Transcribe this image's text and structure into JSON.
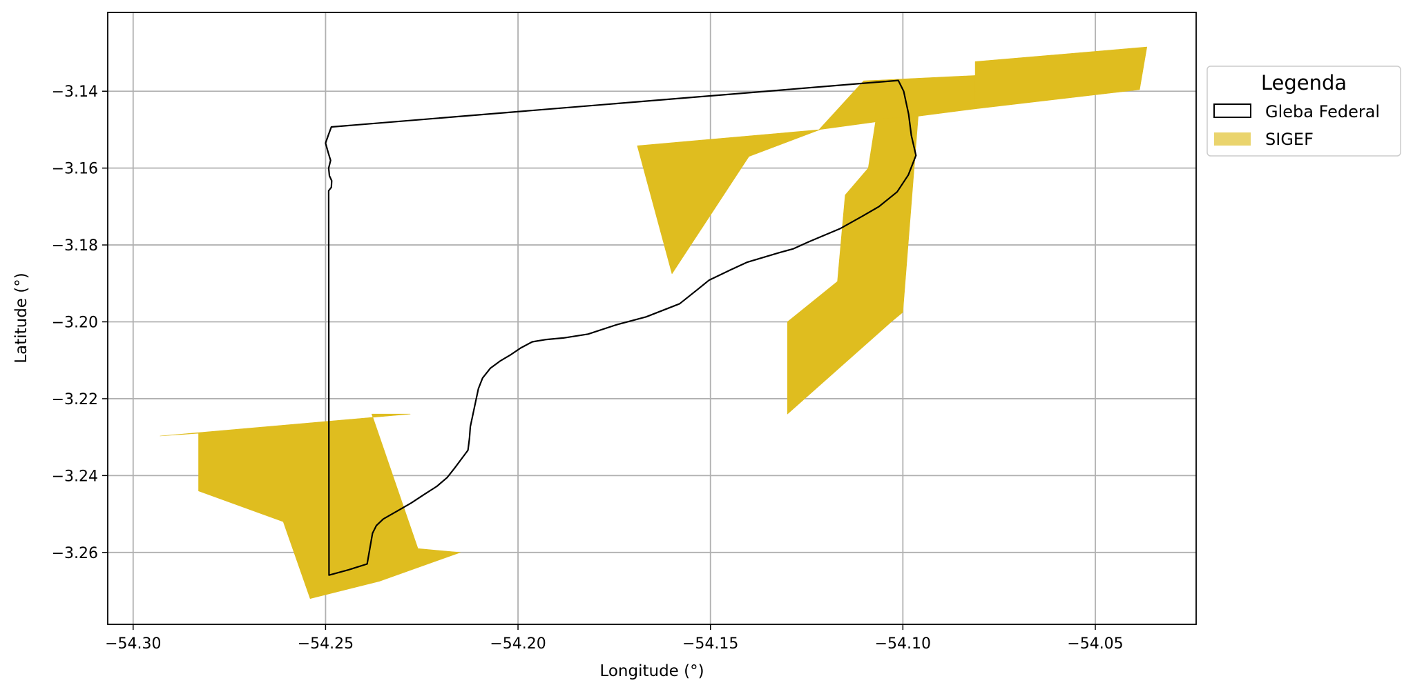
{
  "chart_data": {
    "type": "map",
    "xlabel": "Longitude (°)",
    "ylabel": "Latitude (°)",
    "xlim": [
      -54.3066,
      -54.0238
    ],
    "ylim": [
      -3.2787,
      -3.1195
    ],
    "grid": true,
    "x_ticks": [
      -54.3,
      -54.25,
      -54.2,
      -54.15,
      -54.1,
      -54.05
    ],
    "x_tick_labels": [
      "−54.30",
      "−54.25",
      "−54.20",
      "−54.15",
      "−54.10",
      "−54.05"
    ],
    "y_ticks": [
      -3.14,
      -3.16,
      -3.18,
      -3.2,
      -3.22,
      -3.24,
      -3.26
    ],
    "y_tick_labels": [
      "−3.14",
      "−3.16",
      "−3.18",
      "−3.20",
      "−3.22",
      "−3.24",
      "−3.26"
    ],
    "legend": {
      "title": "Legenda",
      "position": "outside-right-top",
      "entries": [
        {
          "label": "Gleba Federal",
          "style": "outline",
          "edge_color": "#000000"
        },
        {
          "label": "SIGEF",
          "style": "fill",
          "color": "#dfbd1f"
        }
      ]
    },
    "series": [
      {
        "name": "Gleba Federal",
        "type": "polygon-outline",
        "color": "#000000",
        "coords": [
          [
            -54.2485,
            -3.1493
          ],
          [
            -54.1012,
            -3.1372
          ],
          [
            -54.0998,
            -3.14
          ],
          [
            -54.0985,
            -3.146
          ],
          [
            -54.0978,
            -3.1515
          ],
          [
            -54.0966,
            -3.1567
          ],
          [
            -54.0986,
            -3.1618
          ],
          [
            -54.1015,
            -3.1662
          ],
          [
            -54.1062,
            -3.17
          ],
          [
            -54.1105,
            -3.1725
          ],
          [
            -54.1162,
            -3.1757
          ],
          [
            -54.1245,
            -3.1792
          ],
          [
            -54.1285,
            -3.181
          ],
          [
            -54.1321,
            -3.182
          ],
          [
            -54.1405,
            -3.1845
          ],
          [
            -54.1448,
            -3.1865
          ],
          [
            -54.1504,
            -3.1892
          ],
          [
            -54.1535,
            -3.1917
          ],
          [
            -54.158,
            -3.1953
          ],
          [
            -54.1667,
            -3.1987
          ],
          [
            -54.1742,
            -3.2007
          ],
          [
            -54.1818,
            -3.2032
          ],
          [
            -54.1882,
            -3.2042
          ],
          [
            -54.1926,
            -3.2046
          ],
          [
            -54.1963,
            -3.2052
          ],
          [
            -54.1993,
            -3.2068
          ],
          [
            -54.2018,
            -3.2085
          ],
          [
            -54.2045,
            -3.2101
          ],
          [
            -54.2072,
            -3.2121
          ],
          [
            -54.2092,
            -3.2146
          ],
          [
            -54.2103,
            -3.2174
          ],
          [
            -54.211,
            -3.2207
          ],
          [
            -54.2117,
            -3.224
          ],
          [
            -54.2124,
            -3.2273
          ],
          [
            -54.2126,
            -3.2303
          ],
          [
            -54.213,
            -3.2334
          ],
          [
            -54.2147,
            -3.2357
          ],
          [
            -54.2165,
            -3.2381
          ],
          [
            -54.2184,
            -3.2405
          ],
          [
            -54.2211,
            -3.2428
          ],
          [
            -54.2245,
            -3.245
          ],
          [
            -54.2277,
            -3.2471
          ],
          [
            -54.2315,
            -3.2493
          ],
          [
            -54.235,
            -3.2513
          ],
          [
            -54.2368,
            -3.253
          ],
          [
            -54.2378,
            -3.255
          ],
          [
            -54.2392,
            -3.263
          ],
          [
            -54.244,
            -3.2645
          ],
          [
            -54.2491,
            -3.2659
          ],
          [
            -54.2492,
            -3.1659
          ],
          [
            -54.2485,
            -3.165
          ],
          [
            -54.2484,
            -3.1633
          ],
          [
            -54.249,
            -3.162
          ],
          [
            -54.2492,
            -3.16
          ],
          [
            -54.2487,
            -3.158
          ],
          [
            -54.2493,
            -3.156
          ],
          [
            -54.25,
            -3.1535
          ],
          [
            -54.2493,
            -3.1515
          ],
          [
            -54.2485,
            -3.1493
          ]
        ]
      },
      {
        "name": "SIGEF",
        "type": "polygon-fill",
        "color": "#dfbd1f",
        "polygons": [
          [
            [
              -54.0812,
              -3.1359
            ],
            [
              -54.0812,
              -3.1323
            ],
            [
              -54.0366,
              -3.1285
            ],
            [
              -54.0385,
              -3.1396
            ],
            [
              -54.0812,
              -3.1446
            ]
          ],
          [
            [
              -54.1102,
              -3.1373
            ],
            [
              -54.0812,
              -3.1359
            ],
            [
              -54.0812,
              -3.1446
            ],
            [
              -54.096,
              -3.1465
            ],
            [
              -54.102,
              -3.1473
            ],
            [
              -54.1218,
              -3.15
            ]
          ],
          [
            [
              -54.169,
              -3.1542
            ],
            [
              -54.1215,
              -3.15
            ],
            [
              -54.14,
              -3.157
            ],
            [
              -54.16,
              -3.1875
            ]
          ],
          [
            [
              -54.107,
              -3.1473
            ],
            [
              -54.096,
              -3.1465
            ],
            [
              -54.1,
              -3.1975
            ],
            [
              -54.103,
              -3.2
            ],
            [
              -54.13,
              -3.224
            ],
            [
              -54.13,
              -3.2
            ],
            [
              -54.117,
              -3.1895
            ],
            [
              -54.115,
              -3.167
            ],
            [
              -54.109,
              -3.16
            ]
          ],
          [
            [
              -54.293,
              -3.2297
            ],
            [
              -54.228,
              -3.224
            ],
            [
              -54.238,
              -3.224
            ],
            [
              -54.226,
              -3.259
            ],
            [
              -54.215,
              -3.26
            ],
            [
              -54.236,
              -3.2675
            ],
            [
              -54.254,
              -3.272
            ],
            [
              -54.261,
              -3.252
            ],
            [
              -54.283,
              -3.244
            ],
            [
              -54.283,
              -3.229
            ]
          ]
        ]
      }
    ]
  }
}
